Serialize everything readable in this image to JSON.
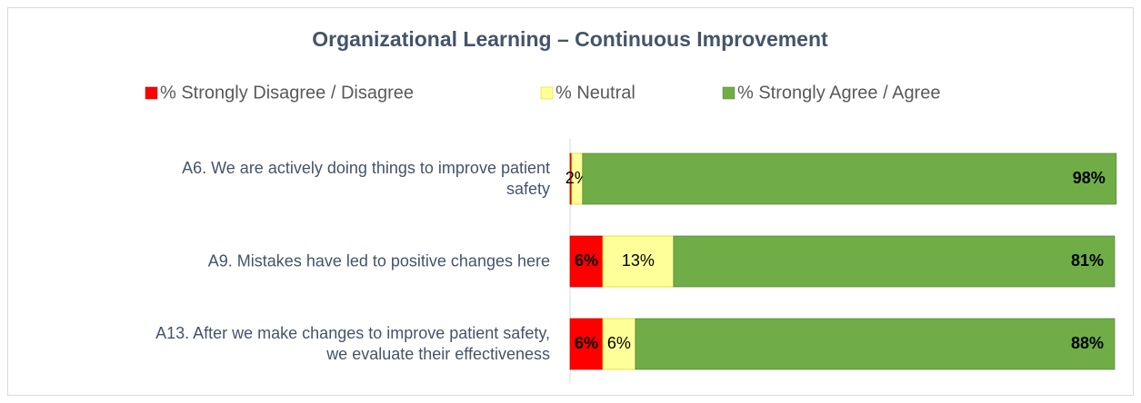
{
  "chart_data": {
    "type": "stacked-bar-horizontal",
    "title": "Organizational Learning – Continuous Improvement",
    "categories": [
      "A6. We are actively doing things to improve patient\nsafety",
      "A9. Mistakes have led to positive changes here",
      "A13. After we make changes to improve patient safety,\nwe evaluate their effectiveness"
    ],
    "series": [
      {
        "name": "% Strongly Disagree / Disagree",
        "color": "#ff0000",
        "values": [
          0.3,
          6,
          6
        ],
        "value_labels": [
          null,
          "6%",
          "6%"
        ]
      },
      {
        "name": "% Neutral",
        "color": "#ffff99",
        "values": [
          2,
          13,
          6
        ],
        "value_labels": [
          "2%",
          "13%",
          "6%"
        ]
      },
      {
        "name": "% Strongly Agree / Agree",
        "color": "#70ad47",
        "values": [
          98,
          81,
          88
        ],
        "value_labels": [
          "98%",
          "81%",
          "88%"
        ]
      }
    ],
    "xlim": [
      0,
      100
    ]
  }
}
